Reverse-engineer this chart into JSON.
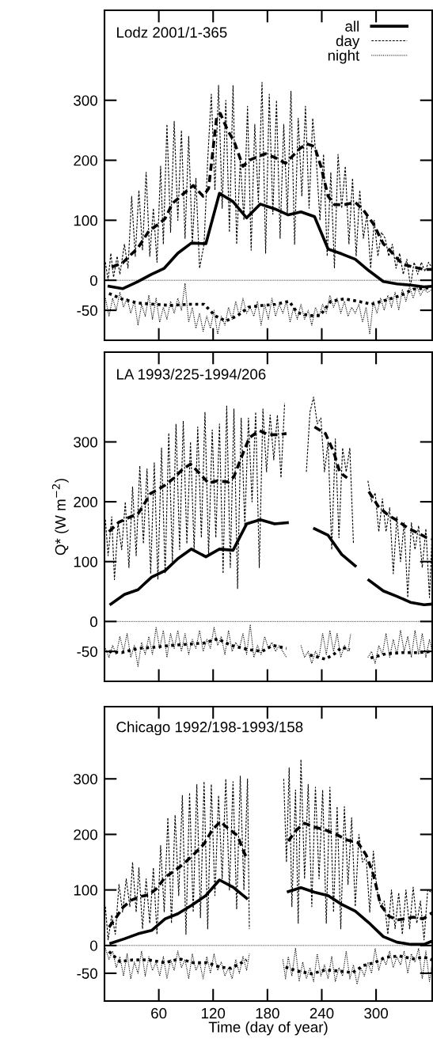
{
  "chart_data": [
    {
      "type": "line",
      "title": "Lodz 2001/1-365",
      "xlim": [
        0,
        362
      ],
      "ylim": [
        -100,
        450
      ],
      "xticks": [
        60,
        120,
        180,
        240,
        300
      ],
      "yticks": [
        -50,
        0,
        100,
        200,
        300
      ],
      "tick_labels": "y",
      "legend": "top right",
      "grid": false,
      "ref_lines": [
        {
          "axis": "y",
          "value": 0,
          "color": "#000000",
          "line_style": "dotted"
        }
      ],
      "series": [
        {
          "name": "all",
          "color": "#000000",
          "line_style": "solid",
          "x": [
            5,
            20,
            36,
            52,
            66,
            81,
            96,
            112,
            127,
            142,
            157,
            172,
            188,
            203,
            217,
            232,
            247,
            262,
            277,
            292,
            308,
            323,
            338,
            353,
            362
          ],
          "values": [
            -10,
            -14,
            -3,
            10,
            20,
            45,
            62,
            61,
            145,
            131,
            104,
            127,
            119,
            109,
            114,
            106,
            52,
            44,
            35,
            16,
            -2,
            -6,
            -8,
            -11,
            -10
          ]
        },
        {
          "color": "#000000",
          "line_style": "dashed",
          "x": [
            8,
            20,
            28,
            37,
            49,
            60,
            67,
            75,
            87,
            98,
            109,
            115,
            124,
            128,
            136,
            143,
            153,
            160,
            169,
            178,
            189,
            200,
            209,
            216,
            224,
            232,
            239,
            247,
            254,
            265,
            277,
            286,
            297,
            308,
            317,
            329,
            341,
            353,
            362
          ],
          "values": [
            22,
            29,
            41,
            54,
            82,
            94,
            103,
            128,
            144,
            158,
            140,
            153,
            273,
            278,
            250,
            232,
            190,
            200,
            206,
            211,
            204,
            195,
            209,
            220,
            227,
            223,
            190,
            140,
            126,
            126,
            130,
            117,
            94,
            61,
            47,
            27,
            22,
            18,
            18
          ]
        },
        {
          "color": "#000000",
          "line_style": "dotted",
          "x": [
            5,
            19,
            37,
            55,
            74,
            92,
            110,
            122,
            134,
            147,
            159,
            174,
            189,
            204,
            213,
            226,
            238,
            250,
            265,
            280,
            295,
            311,
            326,
            341,
            362
          ],
          "values": [
            -22,
            -31,
            -38,
            -40,
            -42,
            -40,
            -40,
            -59,
            -68,
            -59,
            -45,
            -42,
            -40,
            -35,
            -54,
            -59,
            -59,
            -35,
            -31,
            -35,
            -40,
            -33,
            -26,
            -15,
            -12
          ]
        },
        {
          "name": "day",
          "color": "#000000",
          "line_style": "dashed",
          "x": [
            1,
            4,
            7,
            10,
            14,
            17,
            22,
            26,
            30,
            34,
            38,
            42,
            46,
            50,
            54,
            58,
            62,
            65,
            69,
            73,
            77,
            81,
            85,
            89,
            93,
            97,
            101,
            105,
            110,
            114,
            118,
            122,
            126,
            130,
            134,
            138,
            142,
            146,
            150,
            154,
            158,
            162,
            166,
            170,
            174,
            178,
            182,
            186,
            190,
            194,
            198,
            202,
            206,
            210,
            214,
            218,
            222,
            226,
            230,
            234,
            238,
            242,
            246,
            250,
            254,
            258,
            262,
            266,
            270,
            274,
            278,
            282,
            286,
            290,
            294,
            298,
            302,
            306,
            310,
            314,
            318,
            322,
            326,
            330,
            334,
            338,
            342,
            346,
            350,
            354,
            358,
            362
          ],
          "values": [
            30,
            0,
            45,
            5,
            40,
            10,
            60,
            20,
            140,
            40,
            150,
            50,
            180,
            40,
            120,
            30,
            190,
            60,
            260,
            80,
            265,
            100,
            250,
            70,
            240,
            60,
            170,
            20,
            60,
            200,
            310,
            150,
            325,
            120,
            300,
            80,
            325,
            60,
            200,
            100,
            290,
            50,
            260,
            130,
            330,
            45,
            310,
            110,
            300,
            70,
            260,
            110,
            315,
            60,
            270,
            140,
            290,
            120,
            270,
            200,
            100,
            210,
            40,
            180,
            20,
            210,
            120,
            190,
            60,
            170,
            40,
            150,
            70,
            110,
            20,
            100,
            40,
            80,
            70,
            40,
            60,
            20,
            45,
            10,
            35,
            -10,
            30,
            10,
            30,
            15,
            30,
            20
          ]
        },
        {
          "name": "night",
          "color": "#000000",
          "line_style": "dotted",
          "x": [
            1,
            5,
            9,
            13,
            17,
            21,
            25,
            29,
            33,
            37,
            41,
            45,
            49,
            53,
            57,
            61,
            65,
            69,
            73,
            77,
            81,
            85,
            89,
            93,
            97,
            101,
            105,
            109,
            113,
            117,
            121,
            125,
            129,
            133,
            137,
            141,
            145,
            149,
            153,
            157,
            161,
            165,
            169,
            173,
            177,
            181,
            185,
            189,
            193,
            197,
            201,
            205,
            209,
            213,
            217,
            221,
            225,
            229,
            233,
            237,
            241,
            245,
            249,
            253,
            257,
            261,
            265,
            269,
            273,
            277,
            281,
            285,
            289,
            293,
            297,
            301,
            305,
            309,
            313,
            317,
            321,
            325,
            329,
            333,
            337,
            341,
            345,
            349,
            353,
            357,
            362
          ],
          "values": [
            -30,
            -60,
            -30,
            -50,
            -20,
            -45,
            -30,
            -55,
            -35,
            -75,
            -40,
            -60,
            -25,
            -65,
            -30,
            -70,
            -45,
            -65,
            -35,
            -55,
            -30,
            -50,
            -5,
            -70,
            -45,
            -80,
            -55,
            -85,
            -60,
            -80,
            -50,
            -90,
            -60,
            -75,
            -45,
            -65,
            -35,
            -60,
            -30,
            -55,
            -45,
            -60,
            -35,
            -75,
            -40,
            -65,
            -30,
            -60,
            -40,
            -55,
            -35,
            -70,
            -45,
            -65,
            -40,
            -65,
            -50,
            -75,
            -45,
            -60,
            -40,
            -55,
            -25,
            -45,
            -30,
            -55,
            -35,
            -60,
            -45,
            -55,
            -40,
            -70,
            -45,
            -90,
            -35,
            -55,
            -30,
            -50,
            -25,
            -45,
            -20,
            -50,
            -15,
            -35,
            -10,
            -30,
            -10,
            -25,
            -15,
            -20,
            -15
          ]
        }
      ]
    },
    {
      "type": "line",
      "title": "LA 1993/225-1994/206",
      "ylabel": "Q* (W m$^{−2}$)",
      "xlim": [
        0,
        362
      ],
      "ylim": [
        -100,
        450
      ],
      "xticks": [
        60,
        120,
        180,
        240,
        300
      ],
      "yticks": [
        -50,
        0,
        100,
        200,
        300
      ],
      "tick_labels": "y",
      "grid": false,
      "ref_lines": [
        {
          "axis": "y",
          "value": 0,
          "color": "#000000",
          "line_style": "dotted"
        }
      ],
      "series": [
        {
          "color": "#000000",
          "line_style": "solid",
          "x": [
            7,
            22,
            37,
            52,
            67,
            81,
            96,
            112,
            127,
            142,
            157,
            172,
            188,
            202,
            217,
            232,
            247,
            262,
            277,
            284,
            292,
            308,
            323,
            338,
            353,
            362
          ],
          "values": [
            29,
            45,
            53,
            74,
            85,
            105,
            121,
            108,
            121,
            119,
            163,
            170,
            163,
            165,
            null,
            155,
            144,
            112,
            93,
            null,
            69,
            51,
            42,
            32,
            28,
            29
          ]
        },
        {
          "color": "#000000",
          "line_style": "dashed",
          "x": [
            5,
            16,
            26,
            37,
            43,
            51,
            60,
            67,
            77,
            86,
            95,
            104,
            115,
            125,
            137,
            143,
            153,
            160,
            171,
            181,
            192,
            201,
            216,
            232,
            244,
            253,
            260,
            268,
            280,
            292,
            303,
            314,
            324,
            335,
            346,
            356,
            362
          ],
          "values": [
            150,
            166,
            173,
            180,
            194,
            214,
            221,
            228,
            240,
            254,
            263,
            249,
            231,
            235,
            233,
            242,
            281,
            307,
            319,
            312,
            312,
            314,
            null,
            325,
            314,
            284,
            249,
            240,
            null,
            217,
            191,
            177,
            168,
            156,
            148,
            140,
            138
          ]
        },
        {
          "color": "#000000",
          "line_style": "dotted",
          "x": [
            5,
            19,
            37,
            55,
            74,
            92,
            110,
            125,
            140,
            159,
            174,
            186,
            201,
            214,
            227,
            244,
            254,
            262,
            271,
            282,
            294,
            311,
            329,
            347,
            362
          ],
          "values": [
            -50,
            -52,
            -45,
            -43,
            -40,
            -38,
            -36,
            -29,
            -40,
            -47,
            -50,
            -40,
            -45,
            null,
            -56,
            -63,
            -54,
            -43,
            -47,
            null,
            -61,
            -54,
            -52,
            -52,
            -50
          ]
        },
        {
          "color": "#000000",
          "line_style": "dashed",
          "x": [
            1,
            4,
            8,
            11,
            15,
            19,
            23,
            27,
            31,
            35,
            39,
            43,
            47,
            51,
            55,
            59,
            63,
            67,
            71,
            75,
            79,
            83,
            87,
            91,
            95,
            99,
            103,
            107,
            111,
            115,
            119,
            123,
            127,
            131,
            135,
            139,
            143,
            147,
            151,
            155,
            159,
            163,
            167,
            171,
            175,
            179,
            183,
            187,
            191,
            195,
            199,
            203,
            223,
            227,
            231,
            235,
            239,
            243,
            247,
            251,
            255,
            259,
            263,
            267,
            271,
            275,
            279,
            291,
            295,
            299,
            303,
            307,
            311,
            315,
            319,
            323,
            327,
            331,
            335,
            339,
            343,
            347,
            351,
            355,
            359,
            362
          ],
          "values": [
            170,
            110,
            175,
            70,
            165,
            120,
            200,
            90,
            225,
            110,
            260,
            130,
            255,
            80,
            265,
            70,
            290,
            80,
            315,
            100,
            330,
            120,
            335,
            130,
            300,
            120,
            325,
            140,
            350,
            110,
            320,
            140,
            330,
            80,
            360,
            90,
            355,
            55,
            340,
            160,
            340,
            200,
            350,
            90,
            355,
            250,
            345,
            270,
            345,
            240,
            365,
            null,
            250,
            350,
            375,
            330,
            340,
            250,
            300,
            120,
            305,
            140,
            290,
            250,
            290,
            130,
            null,
            235,
            200,
            215,
            150,
            205,
            150,
            190,
            80,
            175,
            100,
            165,
            40,
            165,
            120,
            160,
            90,
            155,
            40,
            150
          ]
        },
        {
          "color": "#000000",
          "line_style": "dotted",
          "x": [
            1,
            5,
            9,
            13,
            17,
            21,
            25,
            29,
            33,
            37,
            41,
            45,
            49,
            53,
            57,
            61,
            65,
            69,
            73,
            77,
            81,
            85,
            89,
            93,
            97,
            101,
            105,
            109,
            113,
            117,
            121,
            125,
            129,
            133,
            137,
            141,
            145,
            149,
            153,
            157,
            161,
            165,
            169,
            173,
            177,
            181,
            185,
            189,
            193,
            197,
            201,
            205,
            217,
            221,
            225,
            229,
            233,
            237,
            241,
            245,
            249,
            253,
            257,
            261,
            265,
            269,
            272,
            276,
            291,
            295,
            299,
            303,
            307,
            311,
            315,
            319,
            323,
            327,
            331,
            335,
            339,
            343,
            347,
            351,
            355,
            359,
            362
          ],
          "values": [
            -45,
            -60,
            -40,
            -55,
            -25,
            -50,
            -20,
            -60,
            -40,
            -75,
            -35,
            -55,
            -25,
            -55,
            -10,
            -45,
            -15,
            -60,
            -20,
            -45,
            -15,
            -50,
            -20,
            -55,
            -30,
            -45,
            -15,
            -50,
            -30,
            -45,
            -10,
            -40,
            -25,
            -55,
            -15,
            -50,
            -35,
            -45,
            -20,
            -55,
            -5,
            -60,
            -40,
            -55,
            -25,
            -45,
            -35,
            -50,
            -40,
            -50,
            -60,
            null,
            -40,
            -60,
            -50,
            -70,
            -50,
            -60,
            -20,
            -55,
            -15,
            -50,
            -20,
            -60,
            -40,
            -50,
            -20,
            null,
            -60,
            -50,
            -70,
            -40,
            -55,
            -20,
            -60,
            -30,
            -55,
            -15,
            -50,
            -25,
            -60,
            -15,
            -55,
            -20,
            -60,
            -30,
            -50
          ]
        }
      ]
    },
    {
      "type": "line",
      "title": "Chicago 1992/198-1993/158",
      "xlabel": "Time (day of year)",
      "xlim": [
        0,
        362
      ],
      "ylim": [
        -100,
        430
      ],
      "xticks": [
        60,
        120,
        180,
        240,
        300
      ],
      "yticks": [
        -50,
        0,
        100,
        200,
        300
      ],
      "grid": false,
      "ref_lines": [
        {
          "axis": "y",
          "value": 0,
          "color": "#000000",
          "line_style": "dotted"
        }
      ],
      "series": [
        {
          "color": "#000000",
          "line_style": "solid",
          "x": [
            7,
            22,
            37,
            52,
            67,
            81,
            96,
            112,
            127,
            142,
            157,
            180,
            203,
            217,
            232,
            247,
            262,
            277,
            292,
            308,
            323,
            338,
            353,
            362
          ],
          "values": [
            4,
            12,
            21,
            27,
            48,
            57,
            72,
            90,
            118,
            105,
            85,
            null,
            97,
            104,
            96,
            90,
            74,
            62,
            41,
            16,
            6,
            2,
            2,
            8
          ]
        },
        {
          "color": "#000000",
          "line_style": "dashed",
          "x": [
            5,
            14,
            20,
            29,
            39,
            49,
            58,
            67,
            77,
            86,
            98,
            110,
            119,
            128,
            137,
            147,
            154,
            157,
            180,
            203,
            212,
            221,
            232,
            244,
            256,
            268,
            280,
            289,
            297,
            305,
            314,
            323,
            332,
            341,
            352,
            362
          ],
          "values": [
            33,
            53,
            68,
            81,
            88,
            91,
            103,
            123,
            134,
            145,
            163,
            183,
            208,
            223,
            210,
            198,
            168,
            158,
            null,
            188,
            208,
            220,
            213,
            208,
            200,
            190,
            185,
            163,
            128,
            73,
            53,
            46,
            48,
            51,
            48,
            59
          ]
        },
        {
          "color": "#000000",
          "line_style": "dotted",
          "x": [
            5,
            17,
            31,
            49,
            67,
            83,
            98,
            113,
            128,
            140,
            157,
            180,
            200,
            213,
            229,
            244,
            259,
            274,
            286,
            298,
            311,
            326,
            341,
            353,
            362
          ],
          "values": [
            -11,
            -29,
            -26,
            -26,
            -31,
            -24,
            -31,
            -31,
            -39,
            -41,
            -26,
            null,
            -39,
            -46,
            -51,
            -44,
            -46,
            -49,
            -36,
            -31,
            -21,
            -19,
            -24,
            -21,
            -26
          ]
        },
        {
          "color": "#000000",
          "line_style": "dashed",
          "x": [
            1,
            4,
            8,
            12,
            16,
            20,
            24,
            28,
            31,
            35,
            38,
            42,
            46,
            50,
            54,
            58,
            62,
            66,
            70,
            74,
            78,
            82,
            86,
            90,
            94,
            98,
            102,
            106,
            110,
            114,
            118,
            122,
            126,
            130,
            134,
            138,
            142,
            146,
            150,
            154,
            158,
            160,
            162,
            198,
            201,
            204,
            207,
            211,
            214,
            217,
            221,
            225,
            229,
            233,
            237,
            241,
            245,
            249,
            253,
            257,
            261,
            265,
            269,
            273,
            277,
            281,
            285,
            289,
            293,
            297,
            301,
            305,
            309,
            313,
            317,
            321,
            325,
            329,
            333,
            337,
            341,
            345,
            349,
            353,
            357,
            362
          ],
          "values": [
            70,
            10,
            55,
            20,
            110,
            60,
            120,
            70,
            150,
            60,
            140,
            30,
            120,
            40,
            140,
            20,
            180,
            60,
            230,
            40,
            235,
            90,
            270,
            20,
            275,
            60,
            290,
            50,
            295,
            30,
            290,
            90,
            270,
            120,
            300,
            100,
            295,
            65,
            305,
            100,
            300,
            30,
            null,
            300,
            150,
            320,
            70,
            280,
            40,
            335,
            120,
            290,
            70,
            285,
            120,
            280,
            40,
            285,
            60,
            250,
            30,
            250,
            110,
            230,
            70,
            200,
            150,
            160,
            60,
            170,
            100,
            70,
            80,
            20,
            100,
            30,
            95,
            20,
            100,
            30,
            105,
            40,
            80,
            10,
            100,
            95
          ]
        },
        {
          "color": "#000000",
          "line_style": "dotted",
          "x": [
            1,
            5,
            9,
            13,
            17,
            21,
            25,
            29,
            33,
            37,
            41,
            45,
            49,
            53,
            57,
            61,
            65,
            69,
            73,
            77,
            81,
            85,
            89,
            93,
            97,
            101,
            105,
            109,
            113,
            117,
            121,
            125,
            129,
            133,
            137,
            141,
            145,
            149,
            153,
            157,
            160,
            162,
            197,
            200,
            203,
            207,
            211,
            215,
            219,
            223,
            227,
            231,
            235,
            239,
            243,
            247,
            251,
            255,
            259,
            263,
            267,
            271,
            275,
            279,
            283,
            287,
            291,
            295,
            299,
            303,
            307,
            311,
            315,
            319,
            323,
            327,
            331,
            335,
            339,
            343,
            347,
            351,
            355,
            359,
            362
          ],
          "values": [
            -5,
            -25,
            -10,
            -40,
            -20,
            -55,
            -15,
            -60,
            -30,
            -50,
            -10,
            -55,
            -20,
            -45,
            -30,
            -55,
            -20,
            -60,
            -25,
            -45,
            -10,
            -40,
            -25,
            -60,
            -15,
            -45,
            -30,
            -60,
            -20,
            -50,
            -15,
            -45,
            -30,
            -55,
            -40,
            -60,
            -25,
            -50,
            -20,
            -45,
            -15,
            null,
            -25,
            -60,
            -20,
            -55,
            -5,
            -65,
            -30,
            -60,
            -40,
            -65,
            -15,
            -55,
            -35,
            -60,
            -20,
            -65,
            -40,
            -55,
            -10,
            -60,
            -35,
            -70,
            -40,
            -55,
            -30,
            -50,
            -5,
            -45,
            -20,
            -35,
            -10,
            -40,
            -20,
            -35,
            -10,
            -50,
            -15,
            -30,
            -5,
            -60,
            -10,
            -65,
            -30
          ]
        }
      ]
    }
  ]
}
